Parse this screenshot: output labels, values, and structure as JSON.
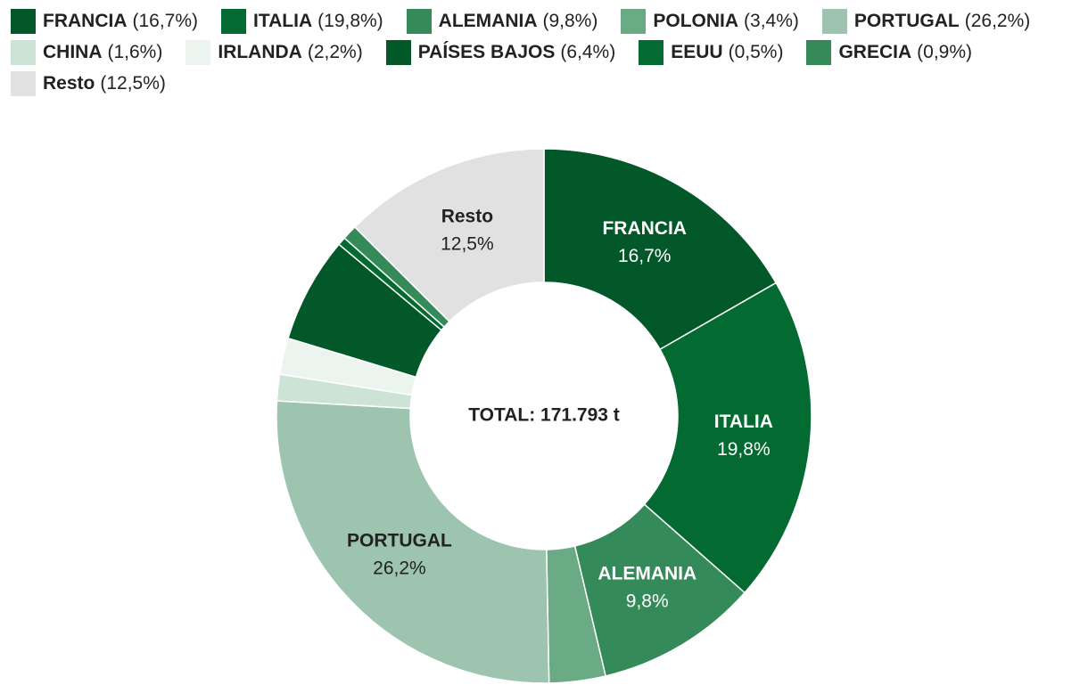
{
  "chart_data": {
    "type": "donut",
    "center_label": "TOTAL: 171.793 t",
    "series": [
      {
        "name": "FRANCIA",
        "color": "#03582a",
        "values": [
          16.7
        ],
        "value_labels": [
          "16,7%"
        ],
        "legend_labels": [
          "(16,7%)"
        ],
        "labeled": true
      },
      {
        "name": "ITALIA",
        "color": "#036a31",
        "values": [
          19.8
        ],
        "value_labels": [
          "19,8%"
        ],
        "legend_labels": [
          "(19,8%)"
        ],
        "labeled": true
      },
      {
        "name": "ALEMANIA",
        "color": "#358a5a",
        "values": [
          9.8
        ],
        "value_labels": [
          "9,8%"
        ],
        "legend_labels": [
          "(9,8%)"
        ],
        "labeled": true
      },
      {
        "name": "POLONIA",
        "color": "#6aaa85",
        "values": [
          3.4
        ],
        "value_labels": [
          "3,4%"
        ],
        "legend_labels": [
          "(3,4%)"
        ],
        "labeled": false
      },
      {
        "name": "PORTUGAL",
        "color": "#9dc4ae",
        "values": [
          26.2
        ],
        "value_labels": [
          "26,2%"
        ],
        "legend_labels": [
          "(26,2%)"
        ],
        "labeled": true
      },
      {
        "name": "CHINA",
        "color": "#cde3d6",
        "values": [
          1.6
        ],
        "value_labels": [
          "1,6%"
        ],
        "legend_labels": [
          "(1,6%)"
        ],
        "labeled": false
      },
      {
        "name": "IRLANDA",
        "color": "#ebf4ee",
        "values": [
          2.2
        ],
        "value_labels": [
          "2,2%"
        ],
        "legend_labels": [
          "(2,2%)"
        ],
        "labeled": false
      },
      {
        "name": "PAÍSES BAJOS",
        "color": "#03582a",
        "values": [
          6.4
        ],
        "value_labels": [
          "6,4%"
        ],
        "legend_labels": [
          "(6,4%)"
        ],
        "labeled": false
      },
      {
        "name": "EEUU",
        "color": "#036a31",
        "values": [
          0.5
        ],
        "value_labels": [
          "0,5%"
        ],
        "legend_labels": [
          "(0,5%)"
        ],
        "labeled": false
      },
      {
        "name": "GRECIA",
        "color": "#358a5a",
        "values": [
          0.9
        ],
        "value_labels": [
          "0,9%"
        ],
        "legend_labels": [
          "(0,9%)"
        ],
        "labeled": false
      },
      {
        "name": "Resto",
        "color": "#e0e1e0",
        "values": [
          12.5
        ],
        "value_labels": [
          "12,5%"
        ],
        "legend_labels": [
          "(12,5%)"
        ],
        "labeled": true
      }
    ]
  }
}
